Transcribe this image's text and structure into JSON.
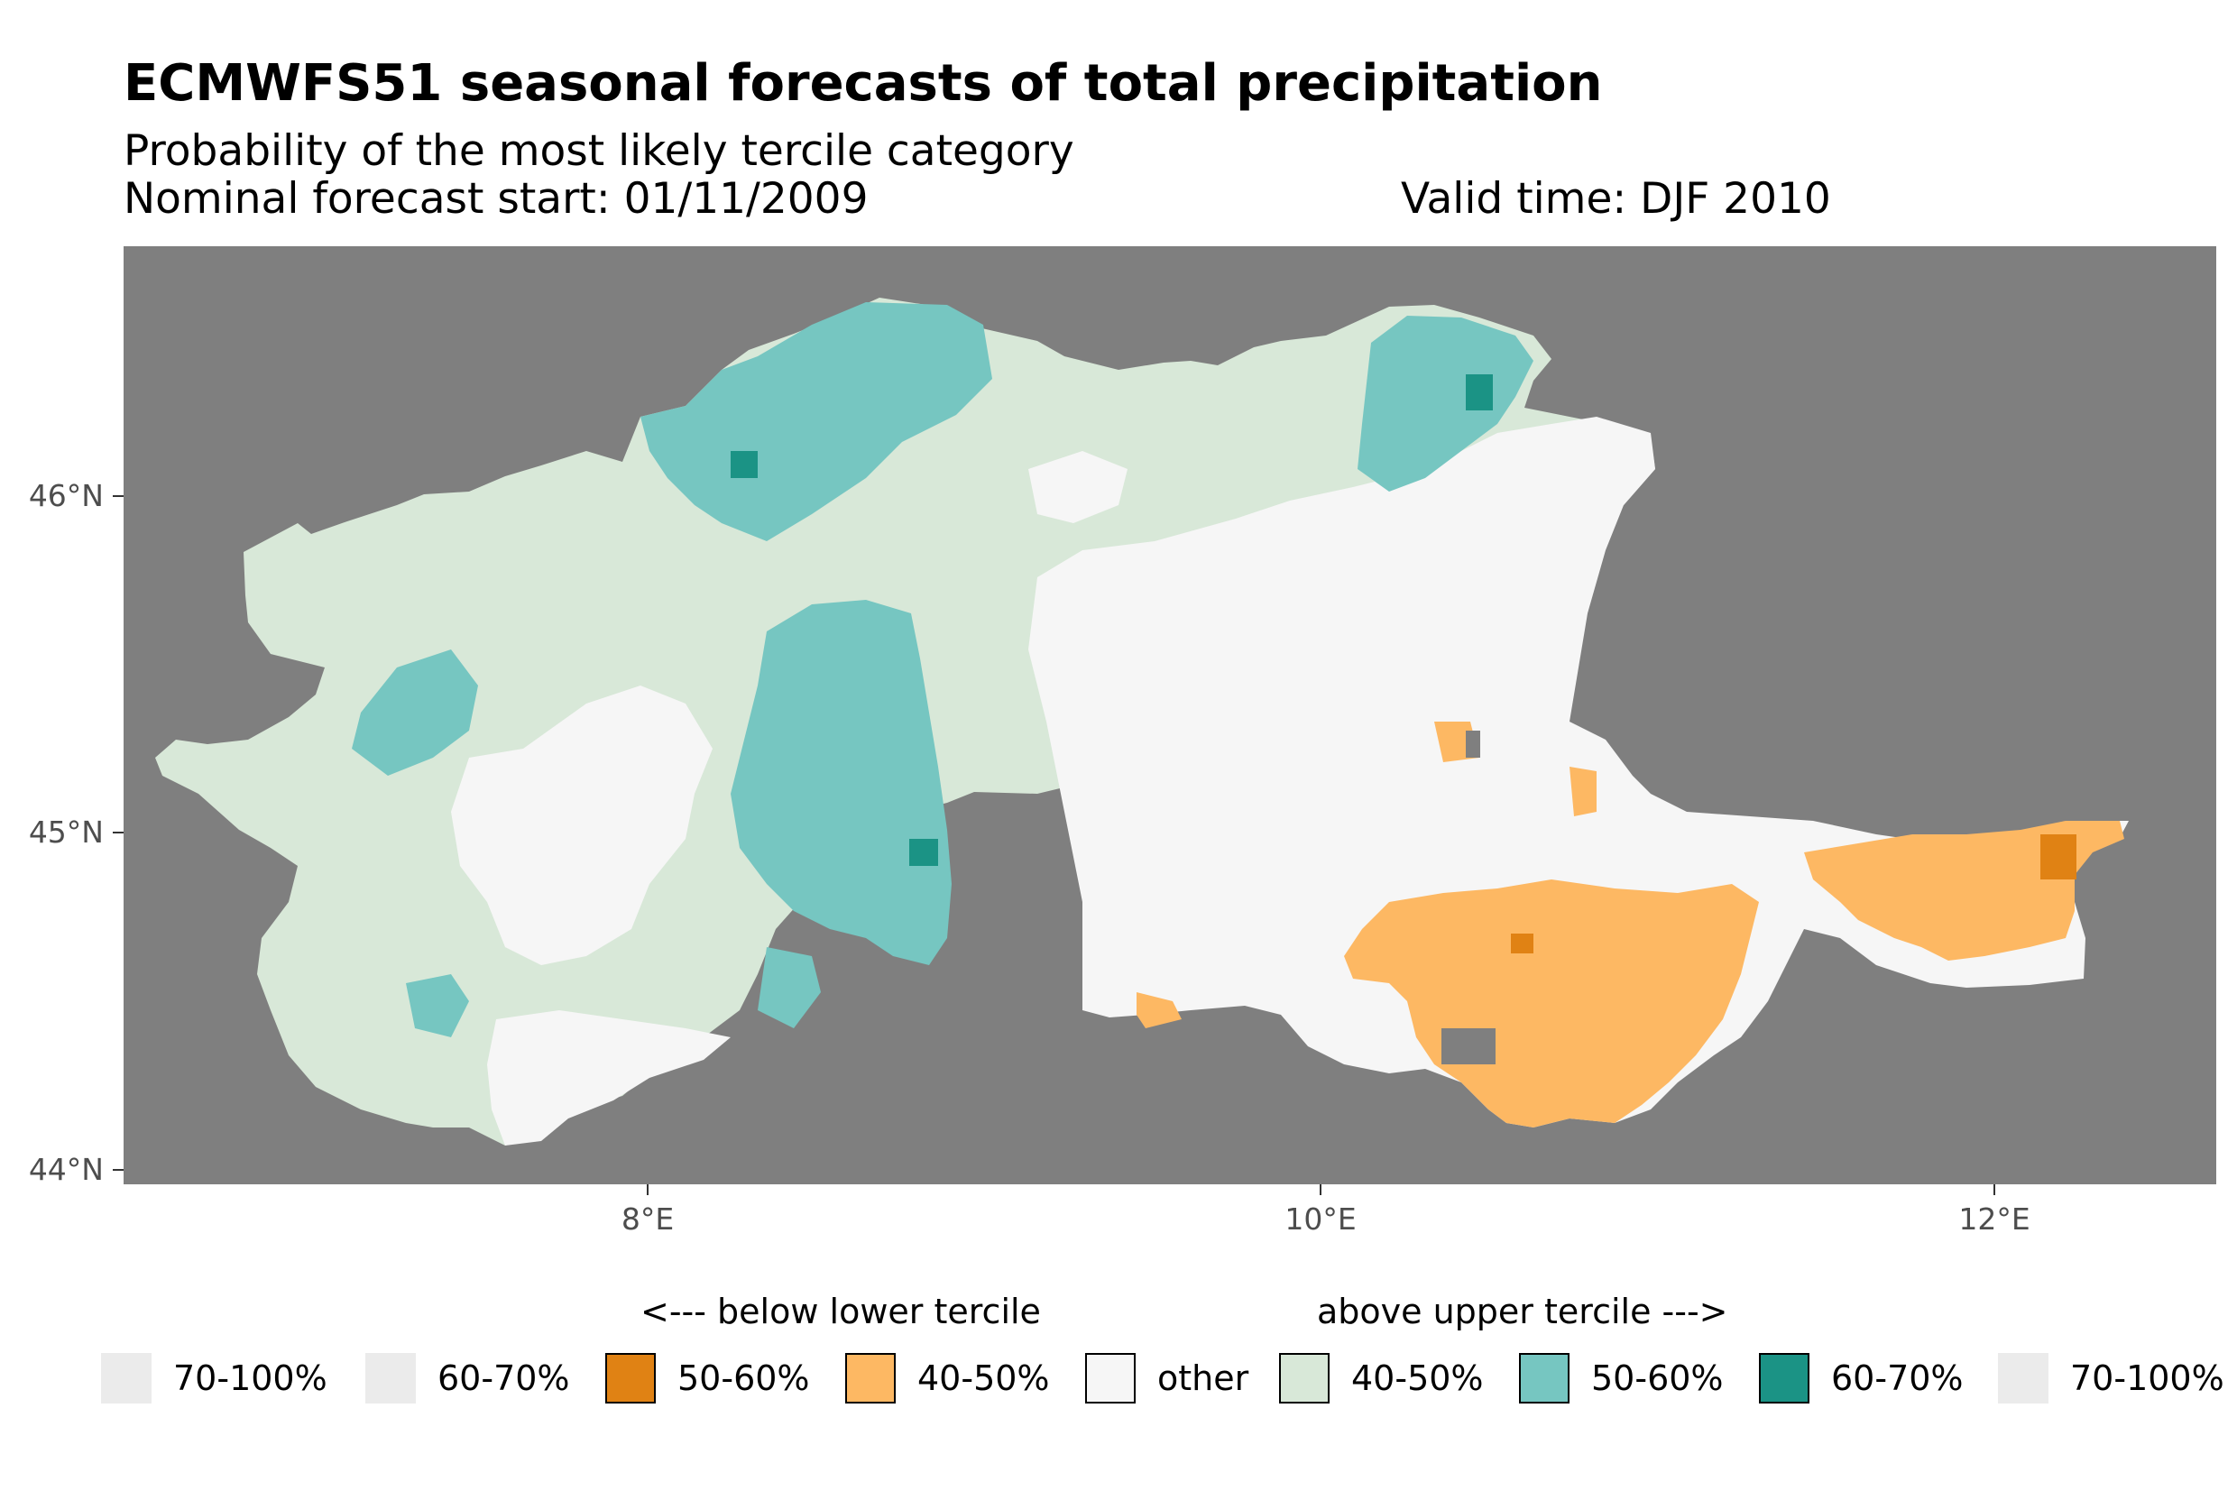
{
  "title": "ECMWFS51 seasonal forecasts of total precipitation",
  "subtitle": "Probability of the most likely tercile category",
  "forecast_start": "Nominal forecast start: 01/11/2009",
  "valid_time": "Valid time: DJF 2010",
  "colors": {
    "panel_background": "#7f7f7f",
    "below_70_100": "#ebebeb",
    "below_60_70": "#ebebeb",
    "below_50_60": "#e08214",
    "below_40_50": "#fdb863",
    "other": "#f6f6f6",
    "above_40_50": "#d8e8d8",
    "above_50_60": "#76c6c1",
    "above_60_70": "#1b9385",
    "above_70_100": "#ebebeb"
  },
  "axes": {
    "y_ticks": [
      "46°N",
      "45°N",
      "44°N"
    ],
    "x_ticks": [
      "8°E",
      "10°E",
      "12°E"
    ]
  },
  "legend": {
    "below_heading": "<--- below lower tercile",
    "above_heading": "above upper tercile --->",
    "items": [
      {
        "label": "70-100%",
        "color": "#ebebeb"
      },
      {
        "label": "60-70%",
        "color": "#ebebeb"
      },
      {
        "label": "50-60%",
        "color": "#e08214"
      },
      {
        "label": "40-50%",
        "color": "#fdb863"
      },
      {
        "label": "other",
        "color": "#f6f6f6"
      },
      {
        "label": "40-50%",
        "color": "#d8e8d8"
      },
      {
        "label": "50-60%",
        "color": "#76c6c1"
      },
      {
        "label": "60-70%",
        "color": "#1b9385"
      },
      {
        "label": "70-100%",
        "color": "#ebebeb"
      }
    ]
  }
}
